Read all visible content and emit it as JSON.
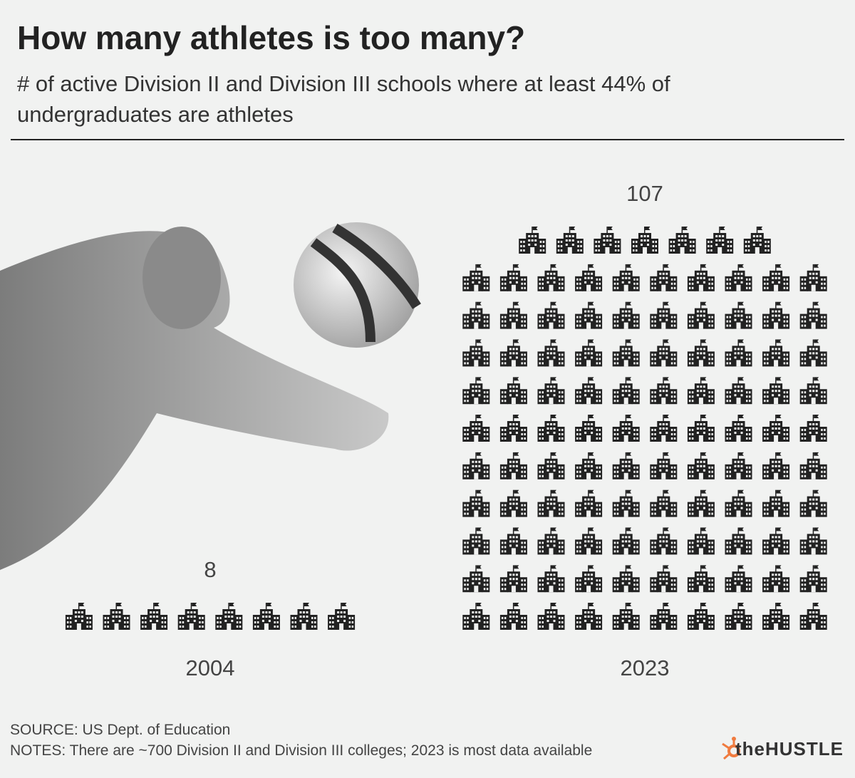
{
  "chart_data": {
    "type": "pictograph",
    "title": "How many athletes is too many?",
    "subtitle": "# of active Division II and Division III schools where at least 44% of undergraduates are athletes",
    "categories": [
      "2004",
      "2023"
    ],
    "values": [
      8,
      107
    ],
    "color": "#222222",
    "source": "SOURCE: US Dept. of Education",
    "notes": "NOTES: There are ~700 Division II and Division III colleges; 2023 is most data available",
    "brand": "theHUSTLE"
  }
}
